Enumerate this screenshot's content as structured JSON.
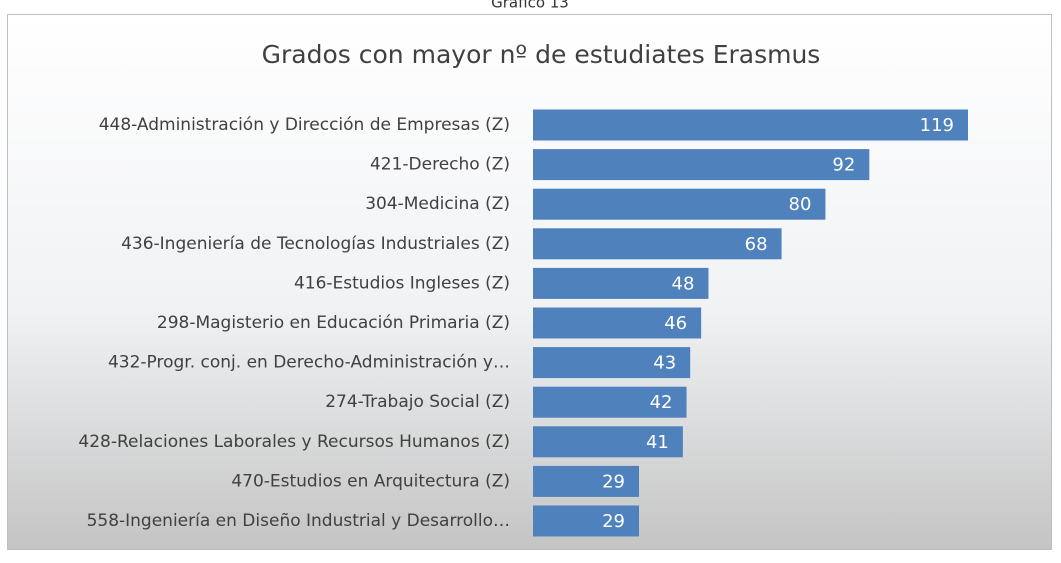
{
  "caption": "Gráfico 13",
  "chart_data": {
    "type": "hbar",
    "title": "Grados con mayor nº de estudiates Erasmus",
    "categories": [
      "448-Administración y Dirección de Empresas (Z)",
      "421-Derecho (Z)",
      "304-Medicina (Z)",
      "436-Ingeniería de Tecnologías Industriales (Z)",
      "416-Estudios Ingleses (Z)",
      "298-Magisterio en Educación Primaria (Z)",
      "432-Progr. conj. en Derecho-Administración y…",
      "274-Trabajo Social (Z)",
      "428-Relaciones Laborales y Recursos Humanos (Z)",
      "470-Estudios en Arquitectura (Z)",
      "558-Ingeniería en Diseño Industrial y Desarrollo…"
    ],
    "values": [
      119,
      92,
      80,
      68,
      48,
      46,
      43,
      42,
      41,
      29,
      29
    ],
    "color": "#4f81bd"
  }
}
